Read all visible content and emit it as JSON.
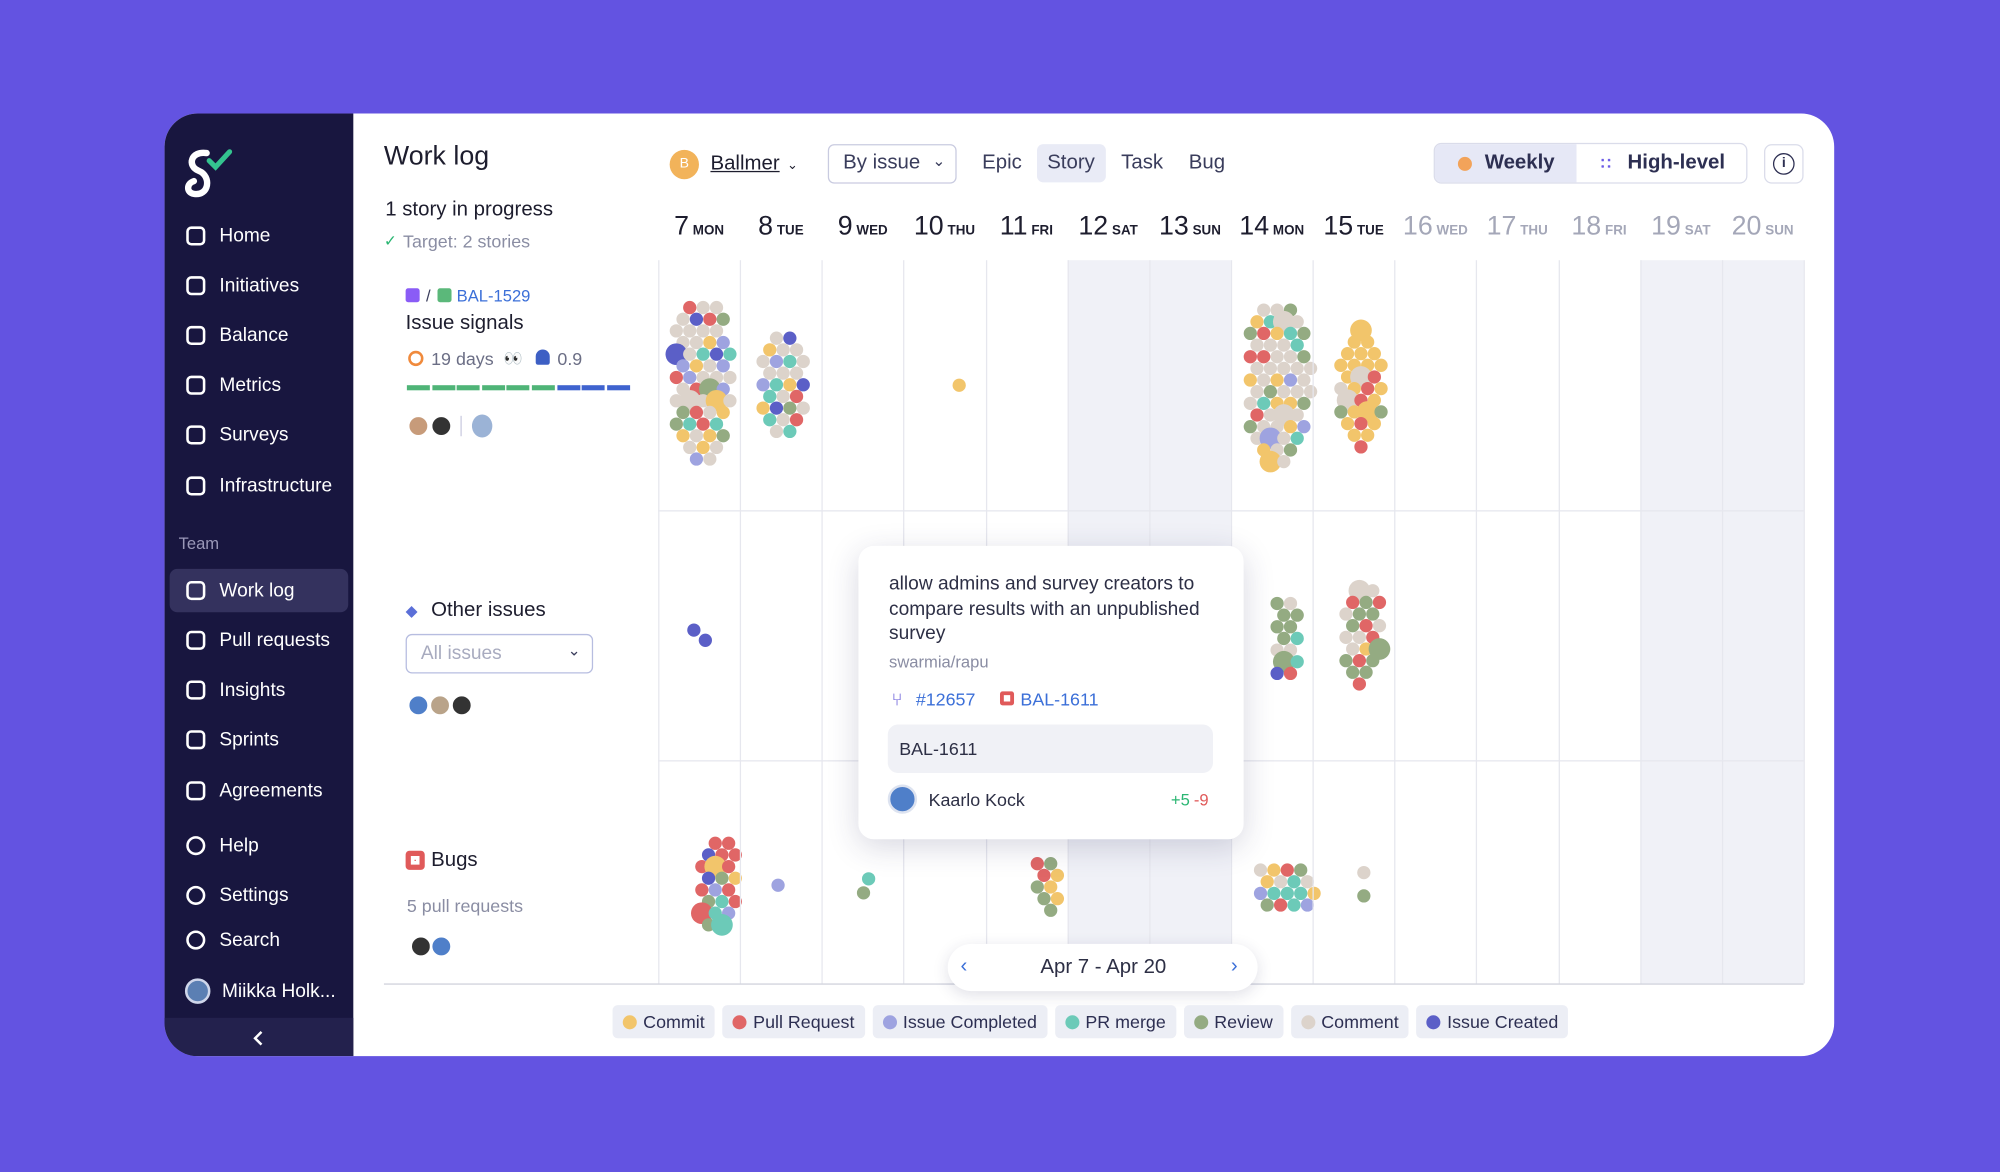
{
  "sidebar": {
    "nav": [
      "Home",
      "Initiatives",
      "Balance",
      "Metrics",
      "Surveys",
      "Infrastructure"
    ],
    "section_label": "Team",
    "team_nav": [
      "Work log",
      "Pull requests",
      "Insights",
      "Sprints",
      "Agreements"
    ],
    "bottom_nav": [
      "Help",
      "Settings",
      "Search"
    ],
    "user": "Miikka Holk..."
  },
  "header": {
    "title": "Work log",
    "team_initial": "B",
    "team": "Ballmer",
    "grouping": "By issue",
    "filters": [
      "Epic",
      "Story",
      "Task",
      "Bug"
    ],
    "views": [
      "Weekly",
      "High-level"
    ]
  },
  "summary": {
    "title": "1 story in progress",
    "target": "Target: 2 stories"
  },
  "story": {
    "issue": "BAL-1529",
    "title": "Issue signals",
    "duration": "19 days",
    "score": 0.9
  },
  "other": {
    "title": "Other issues",
    "filter": "All issues"
  },
  "bugs": {
    "title": "Bugs",
    "subtitle": "5 pull requests"
  },
  "days": [
    {
      "day": 7,
      "weekday": "MON"
    },
    {
      "day": 8,
      "weekday": "TUE"
    },
    {
      "day": 9,
      "weekday": "WED"
    },
    {
      "day": 10,
      "weekday": "THU"
    },
    {
      "day": 11,
      "weekday": "FRI"
    },
    {
      "day": 12,
      "weekday": "SAT"
    },
    {
      "day": 13,
      "weekday": "SUN"
    },
    {
      "day": 14,
      "weekday": "MON"
    },
    {
      "day": 15,
      "weekday": "TUE"
    },
    {
      "day": 16,
      "weekday": "WED"
    },
    {
      "day": 17,
      "weekday": "THU"
    },
    {
      "day": 18,
      "weekday": "FRI"
    },
    {
      "day": 19,
      "weekday": "SAT"
    },
    {
      "day": 20,
      "weekday": "SUN"
    }
  ],
  "tooltip": {
    "text": "allow admins and survey creators to compare results with an unpublished survey",
    "repo": "swarmia/rapu",
    "pr": "#12657",
    "issue": "BAL-1611",
    "box": "BAL-1611",
    "author": "Kaarlo Kock",
    "added": "+5",
    "removed": "-9"
  },
  "pager": "Apr 7 - Apr 20",
  "legend": [
    {
      "name": "Commit",
      "color": "#f2c56b"
    },
    {
      "name": "Pull Request",
      "color": "#e06666"
    },
    {
      "name": "Issue Completed",
      "color": "#9ea3e0"
    },
    {
      "name": "PR merge",
      "color": "#6ccab8"
    },
    {
      "name": "Review",
      "color": "#94ab82"
    },
    {
      "name": "Comment",
      "color": "#dcd3cb"
    },
    {
      "name": "Issue Created",
      "color": "#5b5fc7"
    }
  ]
}
